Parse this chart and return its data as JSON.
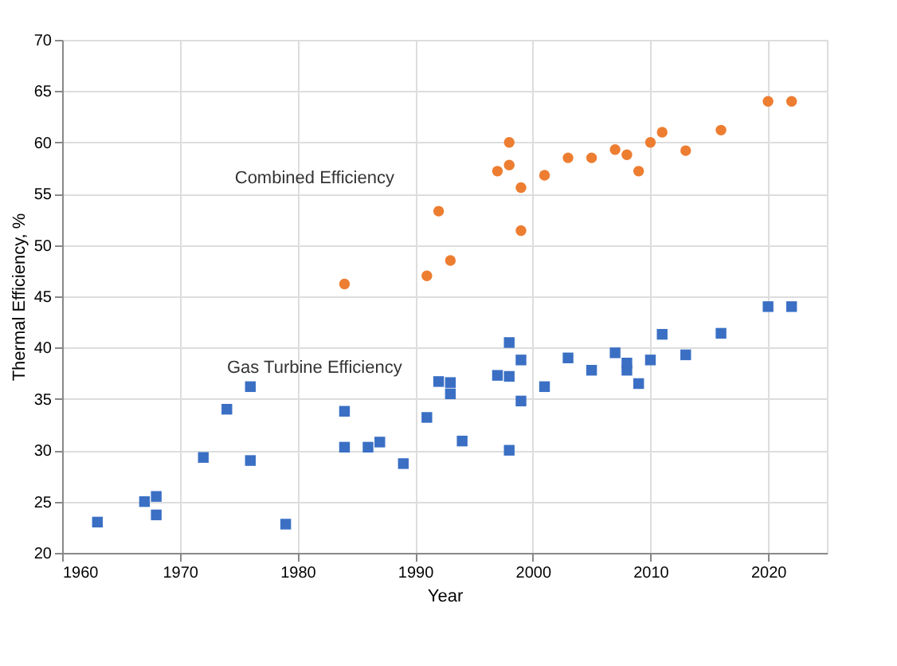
{
  "chart_data": {
    "type": "scatter",
    "xlabel": "Year",
    "ylabel": "Thermal Efficiency, %",
    "xlim": [
      1960,
      2025
    ],
    "xticks": [
      1960,
      1970,
      1980,
      1990,
      2000,
      2010,
      2020
    ],
    "ylim": [
      20,
      70
    ],
    "yticks": [
      20,
      25,
      30,
      35,
      40,
      45,
      50,
      55,
      60,
      65,
      70
    ],
    "grid": true,
    "series": [
      {
        "name": "Combined Efficiency",
        "color": "#ed7d31",
        "marker": "circle",
        "x": [
          1984,
          1991,
          1992,
          1993,
          1997,
          1998,
          1998,
          1999,
          1999,
          2001,
          2003,
          2005,
          2007,
          2008,
          2009,
          2010,
          2011,
          2013,
          2016,
          2020,
          2022
        ],
        "values": [
          46.2,
          47,
          53.3,
          48.5,
          57.2,
          57.8,
          60,
          55.6,
          51.4,
          56.8,
          58.5,
          58.5,
          59.3,
          58.8,
          57.2,
          60,
          61,
          59.2,
          61.2,
          64,
          64
        ]
      },
      {
        "name": "Gas Turbine Efficiency",
        "color": "#3a6fc4",
        "marker": "square",
        "x": [
          1963,
          1967,
          1968,
          1968,
          1972,
          1974,
          1976,
          1976,
          1979,
          1984,
          1984,
          1986,
          1987,
          1989,
          1991,
          1992,
          1993,
          1993,
          1994,
          1997,
          1998,
          1998,
          1998,
          1999,
          1999,
          2001,
          2003,
          2005,
          2007,
          2008,
          2008,
          2009,
          2010,
          2011,
          2013,
          2016,
          2020,
          2022
        ],
        "values": [
          23,
          25,
          25.5,
          23.7,
          29.3,
          34,
          36.2,
          29,
          22.8,
          33.8,
          30.3,
          30.3,
          30.8,
          28.7,
          33.2,
          36.7,
          35.5,
          36.6,
          30.9,
          37.3,
          40.5,
          30,
          37.2,
          38.8,
          34.8,
          36.2,
          39,
          37.8,
          39.5,
          38.5,
          37.8,
          36.5,
          38.8,
          41.3,
          39.3,
          41.4,
          44,
          44
        ]
      }
    ]
  }
}
